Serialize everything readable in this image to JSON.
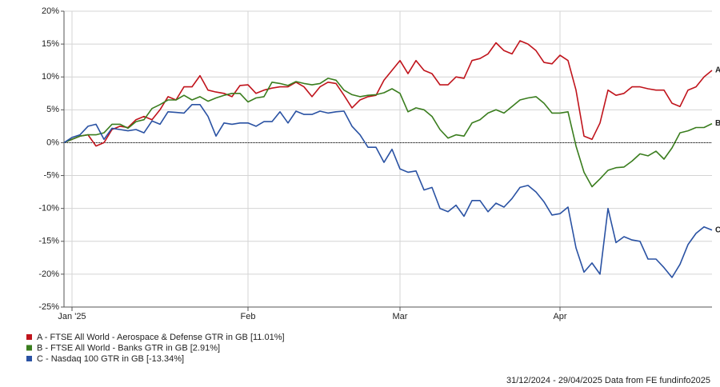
{
  "chart_data": {
    "type": "line",
    "categories": [
      null,
      "Jan '25",
      null,
      null,
      null,
      null,
      null,
      null,
      null,
      null,
      null,
      null,
      null,
      null,
      null,
      null,
      null,
      null,
      null,
      null,
      null,
      null,
      null,
      "Feb",
      null,
      null,
      null,
      null,
      null,
      null,
      null,
      null,
      null,
      null,
      null,
      null,
      null,
      null,
      null,
      null,
      null,
      null,
      "Mar",
      null,
      null,
      null,
      null,
      null,
      null,
      null,
      null,
      null,
      null,
      null,
      null,
      null,
      null,
      null,
      null,
      null,
      null,
      null,
      "Apr",
      null,
      null,
      null,
      null,
      null,
      null,
      null,
      null,
      null,
      null,
      null,
      null,
      null,
      null,
      null,
      null,
      null,
      null,
      null
    ],
    "series": [
      {
        "name": "A - FTSE All World - Aerospace & Defense GTR in GB [11.01%]",
        "label": "A",
        "color": "#c0141c",
        "values": [
          0,
          0.5,
          1,
          1.2,
          -0.5,
          0,
          2,
          2.5,
          2.3,
          3.5,
          4,
          3.5,
          5,
          7,
          6.5,
          8.5,
          8.5,
          10.2,
          8,
          7.7,
          7.5,
          7,
          8.7,
          8.8,
          7.5,
          8,
          8.3,
          8.5,
          8.5,
          9.2,
          8.5,
          7,
          8.5,
          9.2,
          9,
          7.2,
          5.3,
          6.5,
          7,
          7.2,
          9.5,
          11,
          12.5,
          10.5,
          12.5,
          11,
          10.5,
          8.8,
          8.8,
          10,
          9.8,
          12.5,
          12.8,
          13.5,
          15.2,
          14,
          13.5,
          15.5,
          15,
          14,
          12.2,
          12,
          13.3,
          12.5,
          8,
          1,
          0.5,
          3,
          8,
          7.2,
          7.5,
          8.5,
          8.5,
          8.2,
          8,
          8,
          6,
          5.5,
          8,
          8.5,
          10,
          11
        ]
      },
      {
        "name": "B - FTSE All World - Banks GTR in GB [2.91%]",
        "label": "B",
        "color": "#3a7d1e",
        "values": [
          0,
          0.5,
          1,
          1.2,
          1.2,
          1.5,
          2.8,
          2.8,
          2.2,
          3.2,
          3.5,
          5.2,
          5.8,
          6.5,
          6.5,
          7.2,
          6.5,
          7,
          6.3,
          6.8,
          7.2,
          7.5,
          7.5,
          6.2,
          6.8,
          7,
          9.2,
          9,
          8.7,
          9.3,
          9,
          8.8,
          9,
          9.8,
          9.5,
          8,
          7.3,
          7,
          7.2,
          7.3,
          7.6,
          8.2,
          7.5,
          4.7,
          5.3,
          5,
          4,
          2,
          0.7,
          1.2,
          1,
          3,
          3.5,
          4.5,
          5,
          4.5,
          5.5,
          6.5,
          6.8,
          7,
          6,
          4.5,
          4.5,
          4.7,
          -0.5,
          -4.5,
          -6.7,
          -5.5,
          -4.2,
          -3.8,
          -3.7,
          -2.8,
          -1.7,
          -2,
          -1.3,
          -2.5,
          -0.8,
          1.5,
          1.8,
          2.3,
          2.3,
          2.9
        ]
      },
      {
        "name": "C - Nasdaq 100 GTR in GB [-13.34%]",
        "label": "C",
        "color": "#2a52a3",
        "values": [
          0,
          0.8,
          1.2,
          2.5,
          2.8,
          0.5,
          2.2,
          2,
          1.8,
          2,
          1.5,
          3.3,
          2.8,
          4.7,
          4.6,
          4.5,
          5.8,
          5.8,
          4,
          1,
          3,
          2.8,
          3,
          3,
          2.5,
          3.2,
          3.2,
          4.7,
          3,
          4.8,
          4.3,
          4.3,
          4.8,
          4.5,
          4.7,
          4.8,
          2.5,
          1.2,
          -0.7,
          -0.7,
          -3,
          -1,
          -4,
          -4.5,
          -4.3,
          -7.2,
          -6.8,
          -10,
          -10.5,
          -9.5,
          -11.2,
          -8.8,
          -8.8,
          -10.5,
          -9.2,
          -9.8,
          -8.5,
          -6.8,
          -6.5,
          -7.5,
          -9,
          -11,
          -10.8,
          -9.8,
          -16,
          -19.7,
          -18.3,
          -20,
          -10,
          -15.2,
          -14.3,
          -14.8,
          -15,
          -17.7,
          -17.7,
          -19,
          -20.5,
          -18.5,
          -15.5,
          -13.8,
          -12.8,
          -13.3
        ]
      }
    ],
    "ylim": [
      -25,
      20
    ],
    "yticks": [
      {
        "value": -25,
        "label": "-25%"
      },
      {
        "value": -20,
        "label": "-20%"
      },
      {
        "value": -15,
        "label": "-15%"
      },
      {
        "value": -10,
        "label": "-10%"
      },
      {
        "value": -5,
        "label": "-5%"
      },
      {
        "value": 0,
        "label": "0%"
      },
      {
        "value": 5,
        "label": "5%"
      },
      {
        "value": 10,
        "label": "10%"
      },
      {
        "value": 15,
        "label": "15%"
      },
      {
        "value": 20,
        "label": "20%"
      }
    ],
    "grid": true,
    "source": "31/12/2024 - 29/04/2025 Data from FE fundinfo2025"
  }
}
